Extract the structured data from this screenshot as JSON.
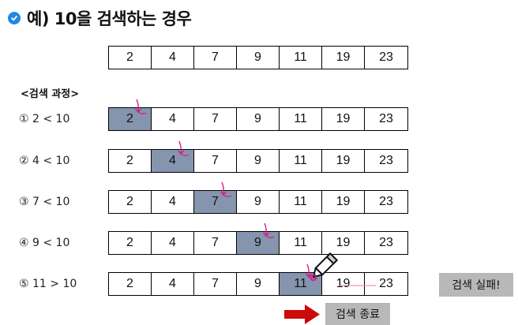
{
  "title": {
    "text": "예) 10을 검색하는 경우",
    "icon": "check-circle-icon"
  },
  "array": [
    "2",
    "4",
    "7",
    "9",
    "11",
    "19",
    "23"
  ],
  "process_label": "<검색 과정>",
  "steps": [
    {
      "label": "① 2 < 10",
      "highlight_index": 0
    },
    {
      "label": "② 4 < 10",
      "highlight_index": 1
    },
    {
      "label": "③ 7 < 10",
      "highlight_index": 2
    },
    {
      "label": "④ 9 < 10",
      "highlight_index": 3
    },
    {
      "label": "⑤ 11 > 10",
      "highlight_index": 4
    }
  ],
  "fail_label": "검색 실패!",
  "end_label": "검색 종료",
  "colors": {
    "highlight": "#8595ad",
    "pointer": "#d81b8a",
    "arrow": "#cc0a0a",
    "badge": "#b8b8b8",
    "icon": "#1e88e5"
  }
}
